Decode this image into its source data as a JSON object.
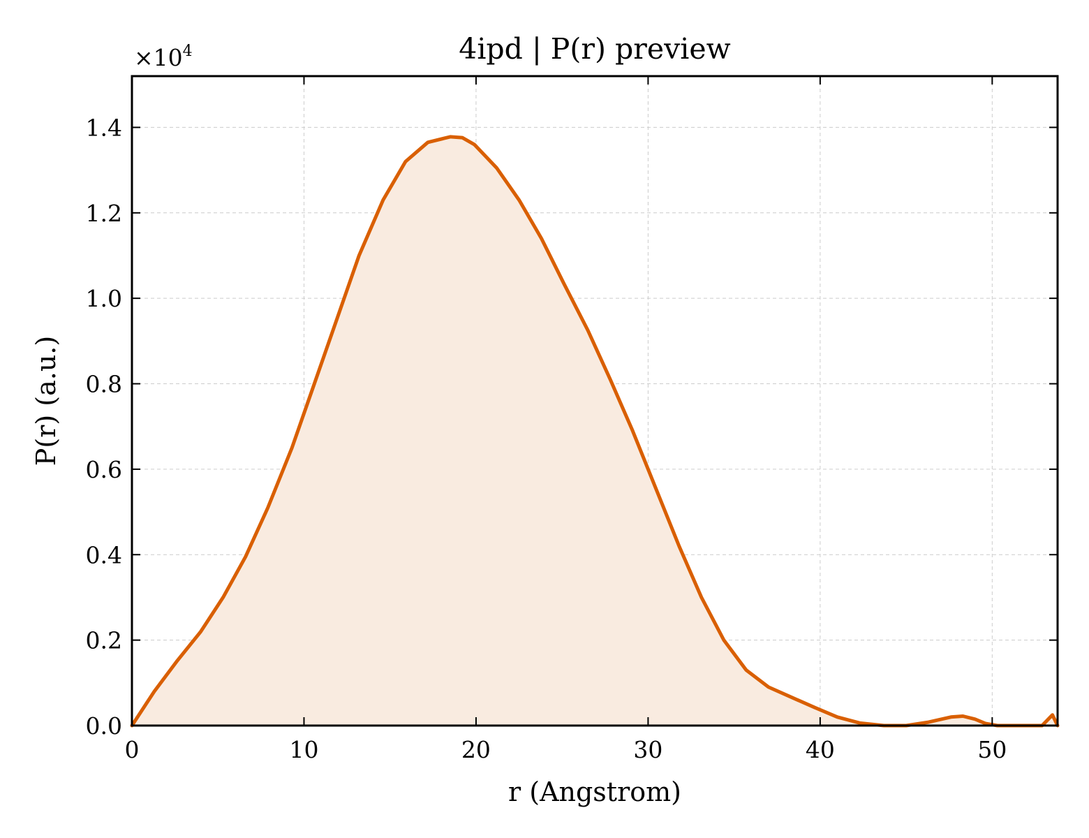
{
  "chart_data": {
    "type": "area",
    "title": "4ipd | P(r) preview",
    "xlabel": "r (Angstrom)",
    "ylabel": "P(r) (a.u.)",
    "y_offset_label": "×10",
    "y_offset_exponent": "4",
    "xlim": [
      0,
      53.8
    ],
    "ylim": [
      0,
      15200
    ],
    "x_ticks": [
      0,
      10,
      20,
      30,
      40,
      50
    ],
    "x_tick_labels": [
      "0",
      "10",
      "20",
      "30",
      "40",
      "50"
    ],
    "y_ticks": [
      0,
      2000,
      4000,
      6000,
      8000,
      10000,
      12000,
      14000
    ],
    "y_tick_labels": [
      "0.0",
      "0.2",
      "0.4",
      "0.6",
      "0.8",
      "1.0",
      "1.2",
      "1.4"
    ],
    "grid": true,
    "line_color": "#d95f02",
    "fill_color": "#f9ebe0",
    "series": [
      {
        "x": [
          0,
          1.3,
          2.6,
          4,
          5.3,
          6.6,
          7.9,
          9.3,
          10.6,
          11.9,
          13.2,
          14.6,
          15.9,
          17.2,
          18.5,
          19.2,
          19.9,
          21.2,
          22.5,
          23.8,
          25.1,
          26.5,
          27.8,
          29.1,
          30.4,
          31.8,
          33.1,
          34.4,
          35.7,
          37,
          38.4,
          39.7,
          41,
          42.3,
          43.7,
          45,
          46.3,
          47.6,
          48.3,
          49,
          49.6,
          50.3,
          51.6,
          52.9,
          53.5,
          53.8
        ],
        "y": [
          0,
          800,
          1500,
          2200,
          3000,
          3950,
          5100,
          6500,
          8000,
          9500,
          11000,
          12300,
          13200,
          13650,
          13780,
          13760,
          13600,
          13050,
          12300,
          11400,
          10350,
          9250,
          8100,
          6900,
          5600,
          4200,
          3000,
          2000,
          1300,
          900,
          650,
          420,
          200,
          60,
          0,
          0,
          80,
          200,
          220,
          150,
          50,
          0,
          0,
          0,
          250,
          0
        ]
      }
    ]
  }
}
